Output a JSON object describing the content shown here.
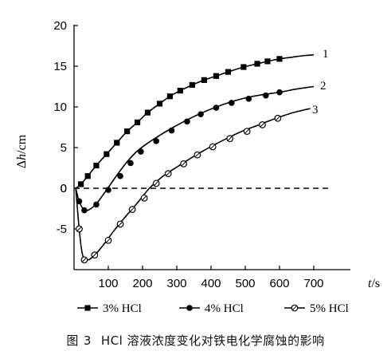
{
  "chart_data": {
    "type": "line",
    "xlabel": "t/s",
    "ylabel": "Δh/cm",
    "xlim": [
      0,
      750
    ],
    "ylim": [
      -10,
      20
    ],
    "x_ticks": [
      100,
      200,
      300,
      400,
      500,
      600,
      700
    ],
    "y_ticks": [
      -5,
      0,
      5,
      10,
      15,
      20
    ],
    "reference_line": {
      "y": 0,
      "style": "dashed"
    },
    "series": [
      {
        "name": "3% HCl",
        "curve_label": "1",
        "marker": "filled-square",
        "x": [
          5,
          20,
          40,
          65,
          95,
          125,
          155,
          185,
          215,
          250,
          280,
          310,
          345,
          380,
          415,
          450,
          495,
          535,
          565,
          600,
          635,
          670,
          700
        ],
        "y": [
          0,
          0.5,
          1.5,
          2.8,
          4.2,
          5.6,
          7.0,
          8.1,
          9.3,
          10.4,
          11.3,
          12.0,
          12.7,
          13.3,
          13.8,
          14.3,
          14.9,
          15.3,
          15.6,
          15.9,
          16.1,
          16.3,
          16.4
        ],
        "marker_x": [
          20,
          40,
          65,
          95,
          125,
          155,
          185,
          215,
          250,
          280,
          310,
          345,
          380,
          415,
          450,
          495,
          535,
          565,
          600
        ],
        "marker_y": [
          0.5,
          1.5,
          2.8,
          4.2,
          5.6,
          7.0,
          8.1,
          9.3,
          10.4,
          11.3,
          12.0,
          12.7,
          13.3,
          13.8,
          14.3,
          14.9,
          15.3,
          15.6,
          15.9
        ]
      },
      {
        "name": "4% HCl",
        "curve_label": "2",
        "marker": "filled-circle",
        "x": [
          5,
          15,
          30,
          45,
          65,
          90,
          120,
          150,
          180,
          210,
          250,
          290,
          330,
          370,
          410,
          450,
          500,
          550,
          600,
          650,
          700
        ],
        "y": [
          0,
          -1.6,
          -2.7,
          -2.6,
          -1.9,
          -0.5,
          1.3,
          3.0,
          4.4,
          5.4,
          6.5,
          7.5,
          8.4,
          9.2,
          9.9,
          10.5,
          11.1,
          11.5,
          11.8,
          12.2,
          12.5
        ],
        "marker_x": [
          15,
          30,
          65,
          100,
          135,
          165,
          195,
          240,
          285,
          330,
          370,
          415,
          460,
          510,
          560,
          600
        ],
        "marker_y": [
          -1.6,
          -2.7,
          -2.0,
          -0.2,
          1.5,
          3.1,
          4.5,
          5.8,
          7.1,
          8.2,
          9.1,
          9.9,
          10.5,
          11.0,
          11.4,
          11.8
        ]
      },
      {
        "name": "5% HCl",
        "curve_label": "3",
        "marker": "open-circle",
        "x": [
          5,
          15,
          25,
          40,
          60,
          85,
          115,
          150,
          185,
          220,
          260,
          300,
          345,
          390,
          440,
          490,
          540,
          590,
          640,
          690
        ],
        "y": [
          0,
          -5,
          -8.2,
          -8.8,
          -8.2,
          -7.0,
          -5.3,
          -3.5,
          -1.8,
          0,
          1.5,
          2.6,
          3.8,
          4.9,
          6.0,
          7.0,
          7.8,
          8.6,
          9.3,
          9.8
        ],
        "marker_x": [
          15,
          30,
          60,
          100,
          135,
          170,
          205,
          240,
          275,
          320,
          360,
          405,
          455,
          505,
          550,
          595
        ],
        "marker_y": [
          -5,
          -8.8,
          -8.2,
          -6.4,
          -4.4,
          -2.6,
          -1.2,
          0.6,
          1.8,
          3.0,
          4.1,
          5.1,
          6.1,
          7.0,
          7.8,
          8.6
        ]
      }
    ]
  },
  "caption": {
    "prefix": "图",
    "number": "3",
    "text": "HCl 溶液浓度变化对铁电化学腐蚀的影响"
  }
}
